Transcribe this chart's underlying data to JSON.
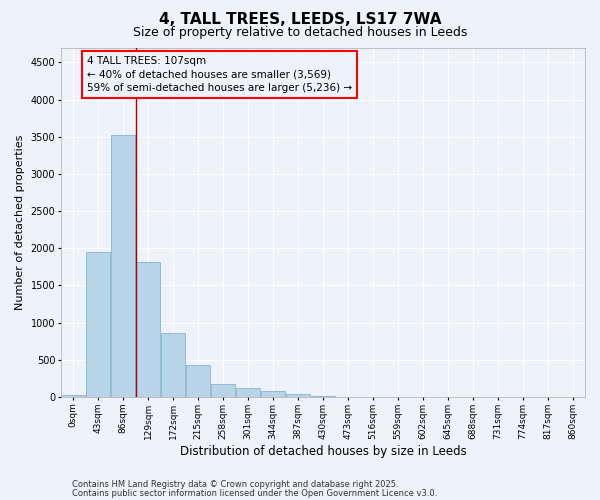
{
  "title": "4, TALL TREES, LEEDS, LS17 7WA",
  "subtitle": "Size of property relative to detached houses in Leeds",
  "xlabel": "Distribution of detached houses by size in Leeds",
  "ylabel": "Number of detached properties",
  "categories": [
    "0sqm",
    "43sqm",
    "86sqm",
    "129sqm",
    "172sqm",
    "215sqm",
    "258sqm",
    "301sqm",
    "344sqm",
    "387sqm",
    "430sqm",
    "473sqm",
    "516sqm",
    "559sqm",
    "602sqm",
    "645sqm",
    "688sqm",
    "731sqm",
    "774sqm",
    "817sqm",
    "860sqm"
  ],
  "values": [
    30,
    1950,
    3520,
    1820,
    860,
    430,
    175,
    120,
    80,
    40,
    15,
    5,
    3,
    1,
    0,
    0,
    0,
    0,
    0,
    0,
    0
  ],
  "bar_color": "#b8d4e8",
  "bar_edge_color": "#7aaac8",
  "vline_x": 2.5,
  "vline_color": "#aa0000",
  "annotation_box_text": "4 TALL TREES: 107sqm\n← 40% of detached houses are smaller (3,569)\n59% of semi-detached houses are larger (5,236) →",
  "ylim": [
    0,
    4700
  ],
  "yticks": [
    0,
    500,
    1000,
    1500,
    2000,
    2500,
    3000,
    3500,
    4000,
    4500
  ],
  "background_color": "#eef2fb",
  "grid_color": "#ffffff",
  "footer_line1": "Contains HM Land Registry data © Crown copyright and database right 2025.",
  "footer_line2": "Contains public sector information licensed under the Open Government Licence v3.0.",
  "title_fontsize": 11,
  "subtitle_fontsize": 9,
  "tick_fontsize": 6.5,
  "ylabel_fontsize": 8,
  "xlabel_fontsize": 8.5,
  "annotation_fontsize": 7.5,
  "footer_fontsize": 6
}
